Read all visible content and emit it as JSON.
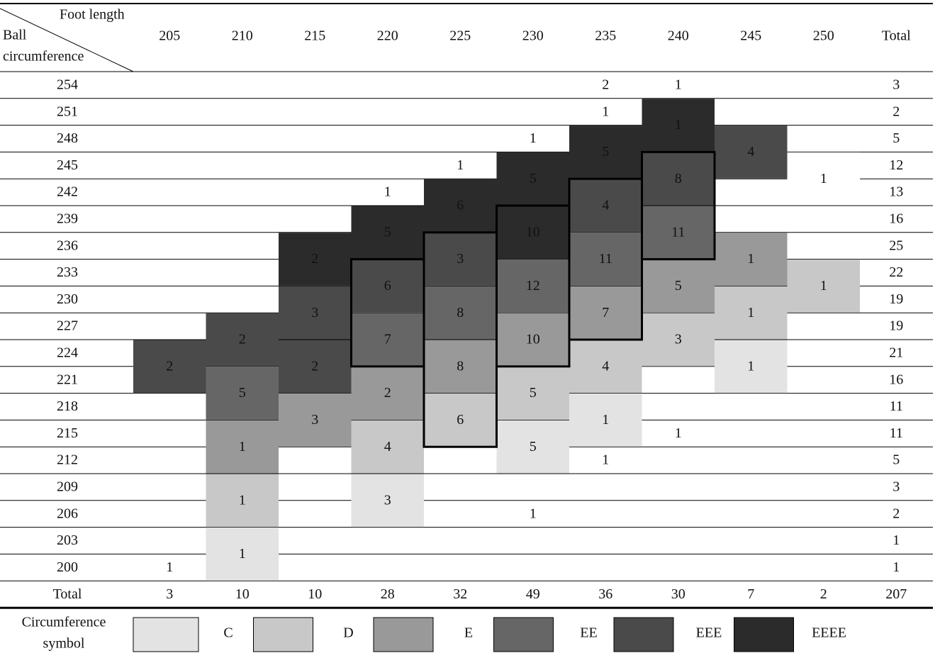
{
  "header": {
    "corner_top": "Foot length",
    "corner_left_1": "Ball",
    "corner_left_2": "circumference"
  },
  "total_label": "Total",
  "rows": [
    "254",
    "251",
    "248",
    "245",
    "242",
    "239",
    "236",
    "233",
    "230",
    "227",
    "224",
    "221",
    "218",
    "215",
    "212",
    "209",
    "206",
    "203",
    "200"
  ],
  "row_totals": [
    3,
    2,
    5,
    12,
    13,
    16,
    25,
    22,
    19,
    19,
    21,
    16,
    11,
    11,
    5,
    3,
    2,
    1,
    1
  ],
  "columns": [
    {
      "label": "205",
      "total": 3,
      "cells": [
        null,
        null,
        null,
        null,
        null,
        null,
        null,
        null,
        null,
        null,
        {
          "value": 2,
          "rows": 2,
          "color": "#4a4a4a"
        },
        null,
        null,
        null,
        null,
        null,
        null,
        null,
        {
          "value": 1
        }
      ]
    },
    {
      "label": "210",
      "total": 10,
      "cells": [
        null,
        null,
        null,
        null,
        null,
        null,
        null,
        null,
        null,
        {
          "value": 2,
          "rows": 2,
          "color": "#4a4a4a"
        },
        null,
        {
          "value": 5,
          "rows": 2,
          "color": "#666666"
        },
        null,
        {
          "value": 1,
          "rows": 2,
          "color": "#999999"
        },
        null,
        {
          "value": 1,
          "rows": 2,
          "color": "#c8c8c8"
        },
        null,
        {
          "value": 1,
          "rows": 2,
          "color": "#e3e3e3"
        },
        null
      ]
    },
    {
      "label": "215",
      "total": 10,
      "cells": [
        null,
        null,
        null,
        null,
        null,
        null,
        {
          "value": 2,
          "rows": 2,
          "color": "#2b2b2b"
        },
        null,
        {
          "value": 3,
          "rows": 2,
          "color": "#4a4a4a"
        },
        null,
        {
          "value": 2,
          "rows": 2,
          "color": "#4a4a4a"
        },
        null,
        {
          "value": 3,
          "rows": 2,
          "color": "#999999"
        },
        null,
        null,
        null,
        null,
        null,
        null
      ]
    },
    {
      "label": "220",
      "total": 28,
      "cells": [
        null,
        null,
        null,
        null,
        {
          "value": 1
        },
        {
          "value": 5,
          "rows": 2,
          "color": "#2b2b2b"
        },
        null,
        {
          "value": 6,
          "rows": 2,
          "color": "#4a4a4a"
        },
        null,
        {
          "value": 7,
          "rows": 2,
          "color": "#666666"
        },
        null,
        {
          "value": 2,
          "rows": 2,
          "color": "#999999"
        },
        null,
        {
          "value": 4,
          "rows": 2,
          "color": "#c8c8c8"
        },
        null,
        {
          "value": 3,
          "rows": 2,
          "color": "#e3e3e3"
        },
        null,
        null,
        null
      ]
    },
    {
      "label": "225",
      "total": 32,
      "cells": [
        null,
        null,
        null,
        {
          "value": 1
        },
        {
          "value": 6,
          "rows": 2,
          "color": "#2b2b2b"
        },
        null,
        {
          "value": 3,
          "rows": 2,
          "color": "#4a4a4a"
        },
        null,
        {
          "value": 8,
          "rows": 2,
          "color": "#666666"
        },
        null,
        {
          "value": 8,
          "rows": 2,
          "color": "#999999"
        },
        null,
        {
          "value": 6,
          "rows": 2,
          "color": "#c8c8c8"
        },
        null,
        null,
        null,
        null,
        null,
        null
      ]
    },
    {
      "label": "230",
      "total": 49,
      "cells": [
        null,
        null,
        {
          "value": 1
        },
        {
          "value": 5,
          "rows": 2,
          "color": "#2b2b2b"
        },
        null,
        {
          "value": 10,
          "rows": 2,
          "color": "#2b2b2b"
        },
        null,
        {
          "value": 12,
          "rows": 2,
          "color": "#666666"
        },
        null,
        {
          "value": 10,
          "rows": 2,
          "color": "#999999"
        },
        null,
        {
          "value": 5,
          "rows": 2,
          "color": "#c8c8c8"
        },
        null,
        {
          "value": 5,
          "rows": 2,
          "color": "#e3e3e3"
        },
        null,
        null,
        {
          "value": 1
        },
        null,
        null
      ]
    },
    {
      "label": "235",
      "total": 36,
      "cells": [
        {
          "value": 2
        },
        {
          "value": 1
        },
        {
          "value": 5,
          "rows": 2,
          "color": "#2b2b2b"
        },
        null,
        {
          "value": 4,
          "rows": 2,
          "color": "#4a4a4a"
        },
        null,
        {
          "value": 11,
          "rows": 2,
          "color": "#666666"
        },
        null,
        {
          "value": 7,
          "rows": 2,
          "color": "#999999"
        },
        null,
        {
          "value": 4,
          "rows": 2,
          "color": "#c8c8c8"
        },
        null,
        {
          "value": 1,
          "rows": 2,
          "color": "#e3e3e3"
        },
        null,
        {
          "value": 1
        },
        null,
        null,
        null,
        null
      ]
    },
    {
      "label": "240",
      "total": 30,
      "cells": [
        {
          "value": 1
        },
        {
          "value": 1,
          "rows": 2,
          "color": "#2b2b2b"
        },
        null,
        {
          "value": 8,
          "rows": 2,
          "color": "#4a4a4a"
        },
        null,
        {
          "value": 11,
          "rows": 2,
          "color": "#666666"
        },
        null,
        {
          "value": 5,
          "rows": 2,
          "color": "#999999"
        },
        null,
        {
          "value": 3,
          "rows": 2,
          "color": "#c8c8c8"
        },
        null,
        null,
        null,
        {
          "value": 1
        },
        null,
        null,
        null,
        null,
        null
      ]
    },
    {
      "label": "245",
      "total": 7,
      "cells": [
        null,
        null,
        {
          "value": 4,
          "rows": 2,
          "color": "#4a4a4a"
        },
        null,
        null,
        null,
        {
          "value": 1,
          "rows": 2,
          "color": "#999999"
        },
        null,
        {
          "value": 1,
          "rows": 2,
          "color": "#c8c8c8"
        },
        null,
        {
          "value": 1,
          "rows": 2,
          "color": "#e3e3e3"
        },
        null,
        null,
        null,
        null,
        null,
        null,
        null,
        null
      ]
    },
    {
      "label": "250",
      "total": 2,
      "cells": [
        null,
        null,
        null,
        {
          "value": 1,
          "rows": 2
        },
        null,
        null,
        null,
        {
          "value": 1,
          "rows": 2,
          "color": "#c8c8c8"
        },
        null,
        null,
        null,
        null,
        null,
        null,
        null,
        null,
        null,
        null,
        null
      ]
    }
  ],
  "grand_total": 207,
  "legend": {
    "title_1": "Circumference",
    "title_2": "symbol",
    "items": [
      {
        "label": "C",
        "color": "#e3e3e3"
      },
      {
        "label": "D",
        "color": "#c8c8c8"
      },
      {
        "label": "E",
        "color": "#999999"
      },
      {
        "label": "EE",
        "color": "#666666"
      },
      {
        "label": "EEE",
        "color": "#4a4a4a"
      },
      {
        "label": "EEEE",
        "color": "#2b2b2b"
      }
    ]
  }
}
